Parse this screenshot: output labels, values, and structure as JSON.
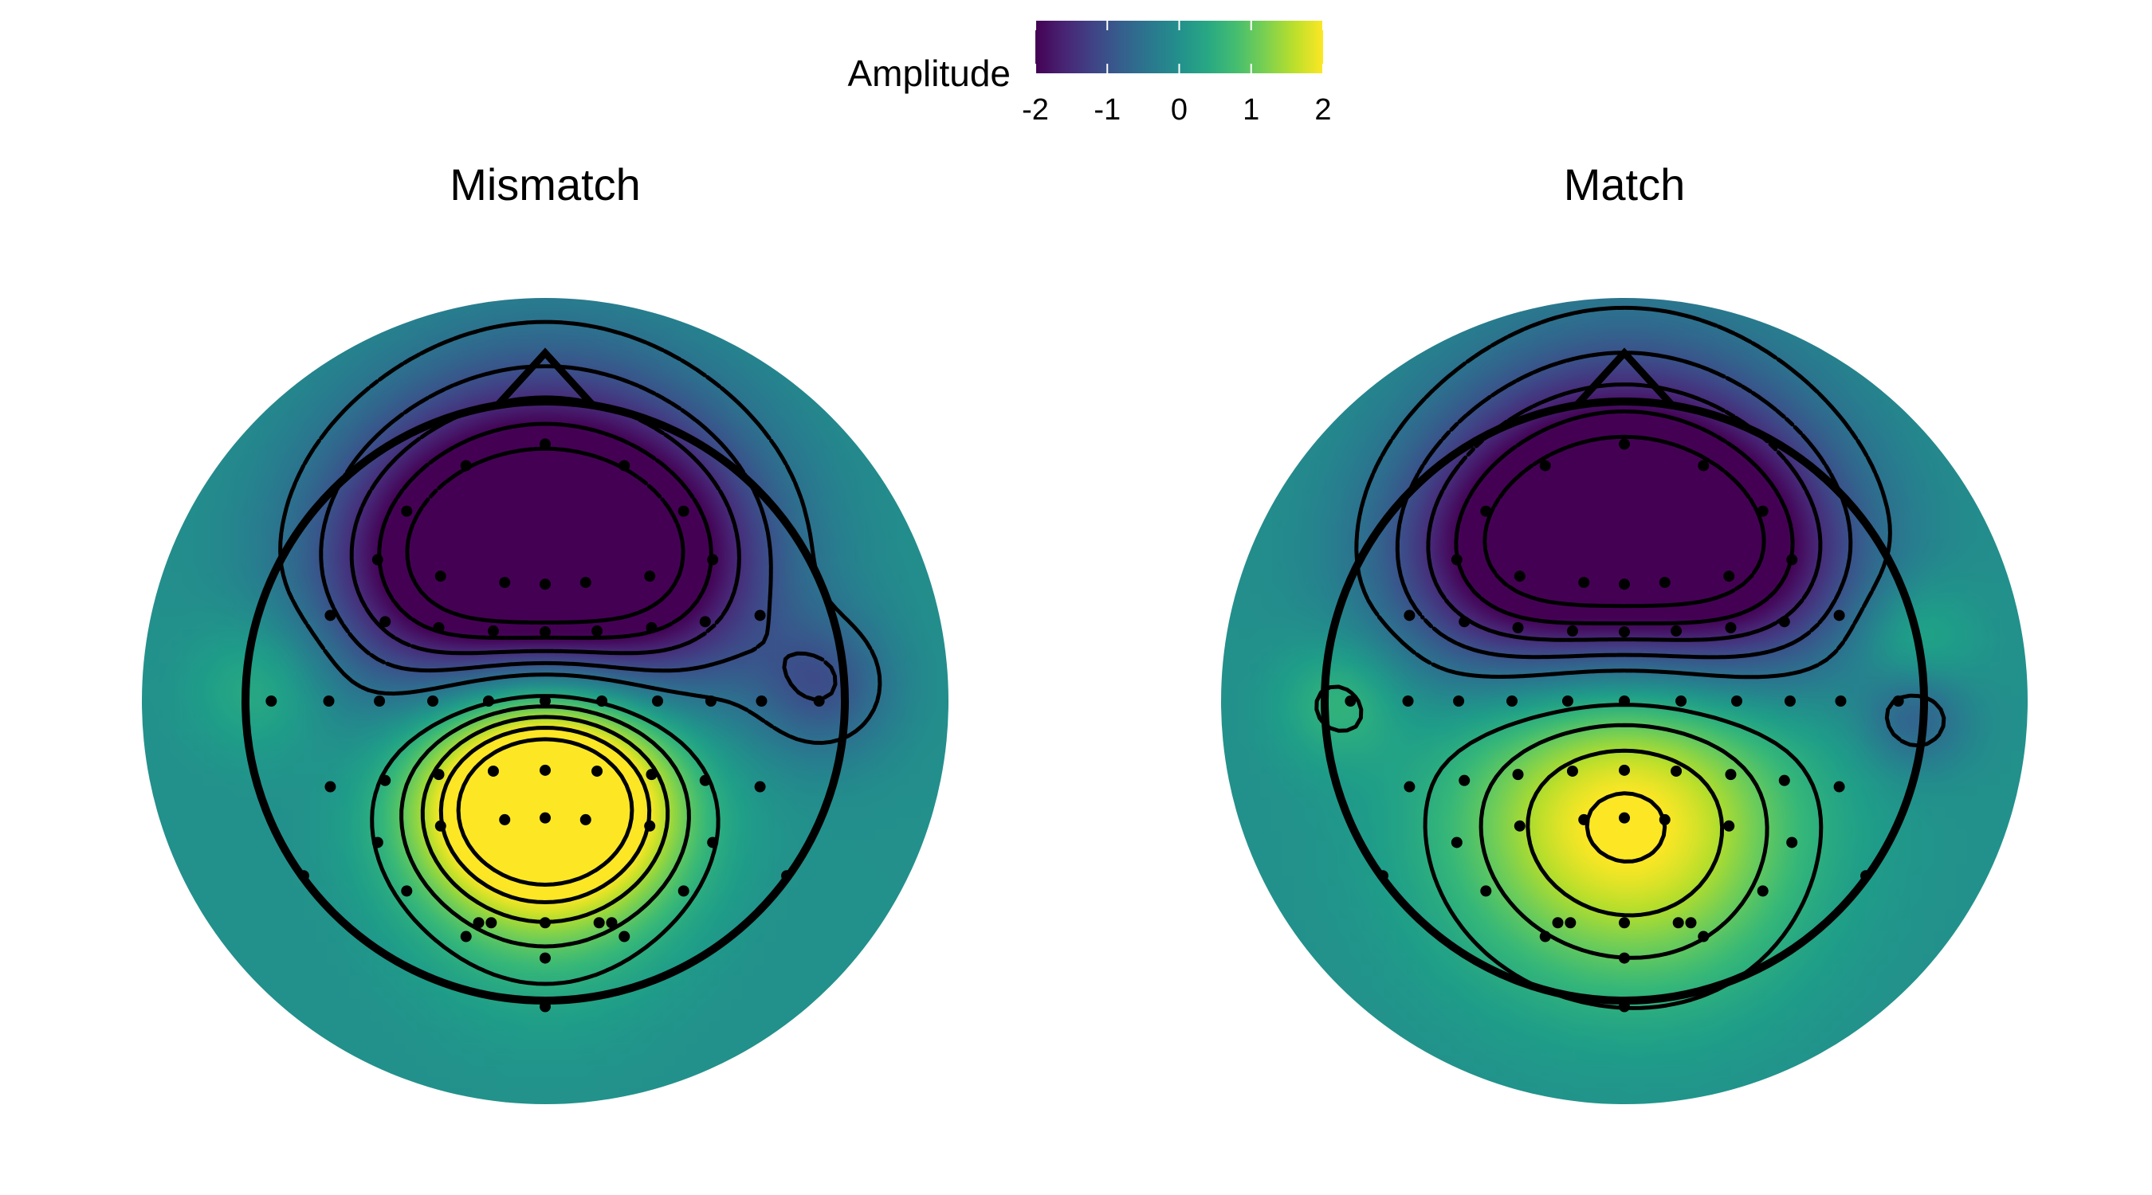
{
  "legend": {
    "title": "Amplitude",
    "ticks": [
      "-2",
      "-1",
      "0",
      "1",
      "2"
    ],
    "colormap": "viridis",
    "colors": [
      "#440154",
      "#3b528b",
      "#21918c",
      "#5ec962",
      "#fde725"
    ]
  },
  "chart_data": [
    {
      "type": "heatmap",
      "subtype": "scalp topography",
      "title": "Mismatch",
      "value_range": [
        -2,
        2
      ],
      "colormap": "viridis",
      "contours": true,
      "sources": [
        {
          "x": 0.0,
          "y": 0.55,
          "s": 0.38,
          "v": -2.8
        },
        {
          "x": -0.4,
          "y": 0.45,
          "s": 0.3,
          "v": -1.2
        },
        {
          "x": 0.4,
          "y": 0.45,
          "s": 0.3,
          "v": -1.2
        },
        {
          "x": 0.0,
          "y": -0.3,
          "s": 0.27,
          "v": 3.5
        },
        {
          "x": -0.25,
          "y": -0.38,
          "s": 0.22,
          "v": 0.6
        },
        {
          "x": 0.25,
          "y": -0.38,
          "s": 0.22,
          "v": 0.6
        },
        {
          "x": 0.0,
          "y": -0.7,
          "s": 0.28,
          "v": 0.4
        },
        {
          "x": -0.95,
          "y": 0.05,
          "s": 0.16,
          "v": 0.5
        },
        {
          "x": 0.93,
          "y": 0.05,
          "s": 0.16,
          "v": -0.9
        }
      ],
      "electrodes": [
        [
          -0.462,
          0.634
        ],
        [
          -0.264,
          0.786
        ],
        [
          0.0,
          0.858
        ],
        [
          0.264,
          0.786
        ],
        [
          0.462,
          0.634
        ],
        [
          -0.559,
          0.472
        ],
        [
          -0.349,
          0.417
        ],
        [
          -0.135,
          0.396
        ],
        [
          0.0,
          0.39
        ],
        [
          0.135,
          0.396
        ],
        [
          0.349,
          0.417
        ],
        [
          0.559,
          0.472
        ],
        [
          -0.717,
          0.286
        ],
        [
          -0.534,
          0.265
        ],
        [
          -0.355,
          0.245
        ],
        [
          -0.173,
          0.234
        ],
        [
          0.0,
          0.231
        ],
        [
          0.173,
          0.234
        ],
        [
          0.355,
          0.245
        ],
        [
          0.534,
          0.265
        ],
        [
          0.717,
          0.286
        ],
        [
          -0.914,
          0.0
        ],
        [
          -0.722,
          0.0
        ],
        [
          -0.553,
          0.0
        ],
        [
          -0.375,
          0.0
        ],
        [
          -0.189,
          0.0
        ],
        [
          0.0,
          0.0
        ],
        [
          0.189,
          0.0
        ],
        [
          0.375,
          0.0
        ],
        [
          0.553,
          0.0
        ],
        [
          0.722,
          0.0
        ],
        [
          0.914,
          0.0
        ],
        [
          -0.717,
          -0.286
        ],
        [
          -0.534,
          -0.265
        ],
        [
          -0.355,
          -0.245
        ],
        [
          -0.173,
          -0.234
        ],
        [
          0.0,
          -0.231
        ],
        [
          0.173,
          -0.234
        ],
        [
          0.355,
          -0.245
        ],
        [
          0.534,
          -0.265
        ],
        [
          0.717,
          -0.286
        ],
        [
          -0.559,
          -0.472
        ],
        [
          -0.349,
          -0.417
        ],
        [
          -0.135,
          -0.396
        ],
        [
          0.0,
          -0.39
        ],
        [
          0.135,
          -0.396
        ],
        [
          0.349,
          -0.417
        ],
        [
          0.559,
          -0.472
        ],
        [
          -0.806,
          -0.583
        ],
        [
          -0.462,
          -0.634
        ],
        [
          -0.264,
          -0.786
        ],
        [
          0.0,
          -0.858
        ],
        [
          0.264,
          -0.786
        ],
        [
          0.462,
          -0.634
        ],
        [
          0.806,
          -0.583
        ],
        [
          -0.222,
          -0.74
        ],
        [
          0.0,
          -0.74
        ],
        [
          0.222,
          -0.74
        ],
        [
          0.0,
          -1.02
        ],
        [
          -0.18,
          -0.74
        ],
        [
          0.18,
          -0.74
        ]
      ]
    },
    {
      "type": "heatmap",
      "subtype": "scalp topography",
      "title": "Match",
      "value_range": [
        -2,
        2
      ],
      "colormap": "viridis",
      "contours": true,
      "sources": [
        {
          "x": 0.0,
          "y": 0.6,
          "s": 0.38,
          "v": -2.8
        },
        {
          "x": -0.4,
          "y": 0.45,
          "s": 0.3,
          "v": -1.4
        },
        {
          "x": 0.4,
          "y": 0.45,
          "s": 0.3,
          "v": -1.4
        },
        {
          "x": 0.0,
          "y": -0.25,
          "s": 0.4,
          "v": 1.8
        },
        {
          "x": 0.15,
          "y": -0.6,
          "s": 0.3,
          "v": 0.5
        },
        {
          "x": -0.25,
          "y": -0.55,
          "s": 0.3,
          "v": 0.3
        },
        {
          "x": -0.95,
          "y": 0.0,
          "s": 0.14,
          "v": 0.6
        },
        {
          "x": 0.97,
          "y": 0.2,
          "s": 0.14,
          "v": 0.5
        },
        {
          "x": 0.97,
          "y": -0.05,
          "s": 0.12,
          "v": -0.8
        }
      ],
      "electrodes": [
        [
          -0.462,
          0.634
        ],
        [
          -0.264,
          0.786
        ],
        [
          0.0,
          0.858
        ],
        [
          0.264,
          0.786
        ],
        [
          0.462,
          0.634
        ],
        [
          -0.559,
          0.472
        ],
        [
          -0.349,
          0.417
        ],
        [
          -0.135,
          0.396
        ],
        [
          0.0,
          0.39
        ],
        [
          0.135,
          0.396
        ],
        [
          0.349,
          0.417
        ],
        [
          0.559,
          0.472
        ],
        [
          -0.717,
          0.286
        ],
        [
          -0.534,
          0.265
        ],
        [
          -0.355,
          0.245
        ],
        [
          -0.173,
          0.234
        ],
        [
          0.0,
          0.231
        ],
        [
          0.173,
          0.234
        ],
        [
          0.355,
          0.245
        ],
        [
          0.534,
          0.265
        ],
        [
          0.717,
          0.286
        ],
        [
          -0.914,
          0.0
        ],
        [
          -0.722,
          0.0
        ],
        [
          -0.553,
          0.0
        ],
        [
          -0.375,
          0.0
        ],
        [
          -0.189,
          0.0
        ],
        [
          0.0,
          0.0
        ],
        [
          0.189,
          0.0
        ],
        [
          0.375,
          0.0
        ],
        [
          0.553,
          0.0
        ],
        [
          0.722,
          0.0
        ],
        [
          0.914,
          0.0
        ],
        [
          -0.717,
          -0.286
        ],
        [
          -0.534,
          -0.265
        ],
        [
          -0.355,
          -0.245
        ],
        [
          -0.173,
          -0.234
        ],
        [
          0.0,
          -0.231
        ],
        [
          0.173,
          -0.234
        ],
        [
          0.355,
          -0.245
        ],
        [
          0.534,
          -0.265
        ],
        [
          0.717,
          -0.286
        ],
        [
          -0.559,
          -0.472
        ],
        [
          -0.349,
          -0.417
        ],
        [
          -0.135,
          -0.396
        ],
        [
          0.0,
          -0.39
        ],
        [
          0.135,
          -0.396
        ],
        [
          0.349,
          -0.417
        ],
        [
          0.559,
          -0.472
        ],
        [
          -0.806,
          -0.583
        ],
        [
          -0.462,
          -0.634
        ],
        [
          -0.264,
          -0.786
        ],
        [
          0.0,
          -0.858
        ],
        [
          0.264,
          -0.786
        ],
        [
          0.462,
          -0.634
        ],
        [
          0.806,
          -0.583
        ],
        [
          -0.222,
          -0.74
        ],
        [
          0.0,
          -0.74
        ],
        [
          0.222,
          -0.74
        ],
        [
          0.0,
          -1.02
        ],
        [
          -0.18,
          -0.74
        ],
        [
          0.18,
          -0.74
        ]
      ]
    }
  ]
}
